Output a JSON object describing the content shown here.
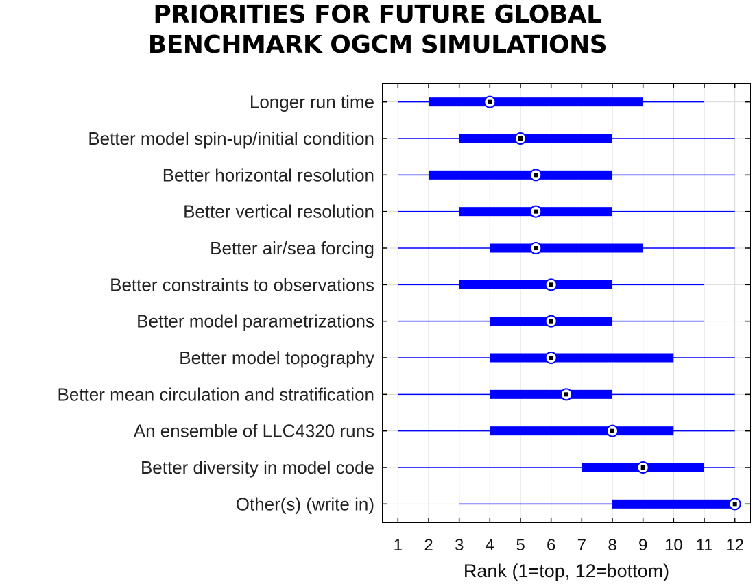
{
  "title_lines": [
    "PRIORITIES FOR FUTURE GLOBAL",
    "BENCHMARK OGCM SIMULATIONS"
  ],
  "chart_data": {
    "type": "boxplot",
    "orientation": "horizontal",
    "xlabel": "Rank (1=top, 12=bottom)",
    "xlim": [
      0.5,
      12.5
    ],
    "xticks": [
      1,
      2,
      3,
      4,
      5,
      6,
      7,
      8,
      9,
      10,
      11,
      12
    ],
    "grid": true,
    "colors": {
      "box": "#0000ff",
      "whisker": "#0000ff",
      "median_ring": "#0000ff",
      "median_dot": "#000000",
      "grid": "#d9d9d9"
    },
    "categories": [
      "Longer run time",
      "Better model spin-up/initial condition",
      "Better horizontal resolution",
      "Better vertical resolution",
      "Better air/sea forcing",
      "Better constraints to observations",
      "Better model parametrizations",
      "Better model topography",
      "Better mean circulation and stratification",
      "An ensemble of LLC4320 runs",
      "Better diversity in model code",
      "Other(s) (write in)"
    ],
    "stats": [
      {
        "min": 1,
        "q1": 2,
        "median": 4,
        "q3": 9,
        "max": 11
      },
      {
        "min": 1,
        "q1": 3,
        "median": 5,
        "q3": 8,
        "max": 12
      },
      {
        "min": 1,
        "q1": 2,
        "median": 5.5,
        "q3": 8,
        "max": 12
      },
      {
        "min": 1,
        "q1": 3,
        "median": 5.5,
        "q3": 8,
        "max": 12
      },
      {
        "min": 1,
        "q1": 4,
        "median": 5.5,
        "q3": 9,
        "max": 12
      },
      {
        "min": 1,
        "q1": 3,
        "median": 6,
        "q3": 8,
        "max": 11
      },
      {
        "min": 1,
        "q1": 4,
        "median": 6,
        "q3": 8,
        "max": 11
      },
      {
        "min": 1,
        "q1": 4,
        "median": 6,
        "q3": 10,
        "max": 12
      },
      {
        "min": 1,
        "q1": 4,
        "median": 6.5,
        "q3": 8,
        "max": 12
      },
      {
        "min": 1,
        "q1": 4,
        "median": 8,
        "q3": 10,
        "max": 12
      },
      {
        "min": 1,
        "q1": 7,
        "median": 9,
        "q3": 11,
        "max": 12
      },
      {
        "min": 3,
        "q1": 8,
        "median": 12,
        "q3": 12,
        "max": 12
      }
    ]
  }
}
